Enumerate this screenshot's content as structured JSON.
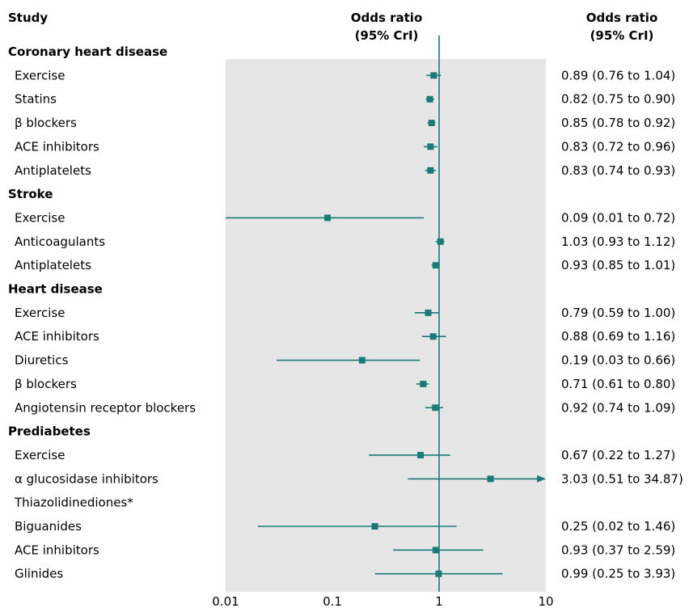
{
  "headers": {
    "study": "Study",
    "or_col_line1": "Odds ratio",
    "or_col_line2": "(95% CrI)",
    "val_col_line1": "Odds ratio",
    "val_col_line2": "(95% CrI)"
  },
  "colors": {
    "marker": "#1a7a78",
    "panel": "#e6e6e6",
    "ref_line": "#1a7a78"
  },
  "chart_data": {
    "type": "forest",
    "x_scale": "log",
    "xlim": [
      0.01,
      10
    ],
    "reference_value": 1,
    "ticks": [
      {
        "value": 0.01,
        "label": "0.01"
      },
      {
        "value": 0.1,
        "label": "0.1"
      },
      {
        "value": 1,
        "label": "1"
      },
      {
        "value": 10,
        "label": "10"
      }
    ],
    "rows": [
      {
        "kind": "group",
        "label": "Coronary heart disease"
      },
      {
        "kind": "item",
        "label": "Exercise",
        "or": 0.89,
        "lo": 0.76,
        "hi": 1.04,
        "text": "0.89 (0.76 to 1.04)"
      },
      {
        "kind": "item",
        "label": "Statins",
        "or": 0.82,
        "lo": 0.75,
        "hi": 0.9,
        "text": "0.82 (0.75 to 0.90)"
      },
      {
        "kind": "item",
        "label": "β blockers",
        "or": 0.85,
        "lo": 0.78,
        "hi": 0.92,
        "text": "0.85 (0.78 to 0.92)"
      },
      {
        "kind": "item",
        "label": "ACE inhibitors",
        "or": 0.83,
        "lo": 0.72,
        "hi": 0.96,
        "text": "0.83 (0.72 to 0.96)"
      },
      {
        "kind": "item",
        "label": "Antiplatelets",
        "or": 0.83,
        "lo": 0.74,
        "hi": 0.93,
        "text": "0.83 (0.74 to 0.93)"
      },
      {
        "kind": "group",
        "label": "Stroke"
      },
      {
        "kind": "item",
        "label": "Exercise",
        "or": 0.09,
        "lo": 0.01,
        "hi": 0.72,
        "text": "0.09 (0.01 to 0.72)"
      },
      {
        "kind": "item",
        "label": "Anticoagulants",
        "or": 1.03,
        "lo": 0.93,
        "hi": 1.12,
        "text": "1.03 (0.93 to 1.12)"
      },
      {
        "kind": "item",
        "label": "Antiplatelets",
        "or": 0.93,
        "lo": 0.85,
        "hi": 1.01,
        "text": "0.93 (0.85 to 1.01)"
      },
      {
        "kind": "group",
        "label": "Heart disease"
      },
      {
        "kind": "item",
        "label": "Exercise",
        "or": 0.79,
        "lo": 0.59,
        "hi": 1.0,
        "text": "0.79 (0.59 to 1.00)"
      },
      {
        "kind": "item",
        "label": "ACE inhibitors",
        "or": 0.88,
        "lo": 0.69,
        "hi": 1.16,
        "text": "0.88 (0.69 to 1.16)"
      },
      {
        "kind": "item",
        "label": "Diuretics",
        "or": 0.19,
        "lo": 0.03,
        "hi": 0.66,
        "text": "0.19 (0.03 to 0.66)"
      },
      {
        "kind": "item",
        "label": "β blockers",
        "or": 0.71,
        "lo": 0.61,
        "hi": 0.8,
        "text": "0.71 (0.61 to 0.80)"
      },
      {
        "kind": "item",
        "label": "Angiotensin receptor blockers",
        "or": 0.92,
        "lo": 0.74,
        "hi": 1.09,
        "text": "0.92 (0.74 to 1.09)"
      },
      {
        "kind": "group",
        "label": "Prediabetes"
      },
      {
        "kind": "item",
        "label": "Exercise",
        "or": 0.67,
        "lo": 0.22,
        "hi": 1.27,
        "text": "0.67 (0.22 to 1.27)"
      },
      {
        "kind": "item",
        "label": "α glucosidase inhibitors",
        "or": 3.03,
        "lo": 0.51,
        "hi": 34.87,
        "text": "3.03 (0.51 to 34.87)"
      },
      {
        "kind": "item",
        "label": "Thiazolidinediones*",
        "or": null,
        "lo": null,
        "hi": null,
        "text": ""
      },
      {
        "kind": "item",
        "label": "Biguanides",
        "or": 0.25,
        "lo": 0.02,
        "hi": 1.46,
        "text": "0.25 (0.02 to 1.46)"
      },
      {
        "kind": "item",
        "label": "ACE inhibitors",
        "or": 0.93,
        "lo": 0.37,
        "hi": 2.59,
        "text": "0.93 (0.37 to 2.59)"
      },
      {
        "kind": "item",
        "label": "Glinides",
        "or": 0.99,
        "lo": 0.25,
        "hi": 3.93,
        "text": "0.99 (0.25 to 3.93)"
      }
    ]
  }
}
